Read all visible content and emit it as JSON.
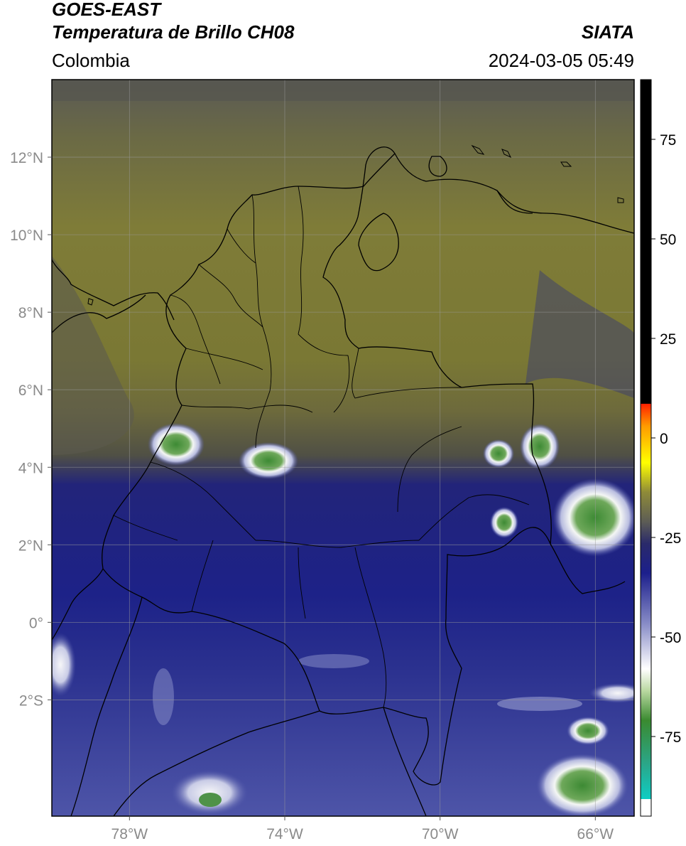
{
  "header": {
    "title_line1": "GOES-EAST",
    "title_line2": "Temperatura de Brillo CH08",
    "region": "Colombia",
    "organization": "SIATA",
    "datetime": "2024-03-05 05:49"
  },
  "map": {
    "lon_range": [
      -80,
      -65
    ],
    "lat_range": [
      -5,
      14
    ],
    "lon_ticks": [
      {
        "value": -78,
        "label": "78°W"
      },
      {
        "value": -74,
        "label": "74°W"
      },
      {
        "value": -70,
        "label": "70°W"
      },
      {
        "value": -66,
        "label": "66°W"
      }
    ],
    "lat_ticks": [
      {
        "value": 12,
        "label": "12°N"
      },
      {
        "value": 10,
        "label": "10°N"
      },
      {
        "value": 8,
        "label": "8°N"
      },
      {
        "value": 6,
        "label": "6°N"
      },
      {
        "value": 4,
        "label": "4°N"
      },
      {
        "value": 2,
        "label": "2°N"
      },
      {
        "value": 0,
        "label": "0°"
      },
      {
        "value": -2,
        "label": "2°S"
      }
    ],
    "colorbar": {
      "range": [
        -95,
        90
      ],
      "ticks": [
        {
          "value": 75,
          "label": "75"
        },
        {
          "value": 50,
          "label": "50"
        },
        {
          "value": 25,
          "label": "25"
        },
        {
          "value": 0,
          "label": "0"
        },
        {
          "value": -25,
          "label": "-25"
        },
        {
          "value": -50,
          "label": "-50"
        },
        {
          "value": -75,
          "label": "-75"
        }
      ]
    },
    "colors": {
      "warm_olive": "#7e7b3a",
      "dark_gray": "#5e5e56",
      "cold_navy": "#1a1f86",
      "medium_blue": "#4b52a6",
      "cloud_white": "#f2f2f4",
      "deep_convection_green": "#3f8a3a"
    }
  }
}
